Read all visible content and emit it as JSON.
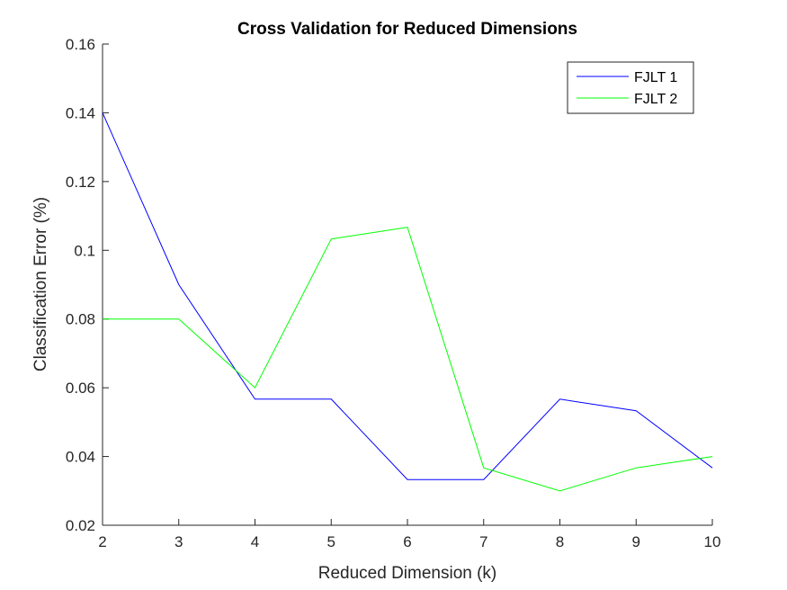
{
  "chart_data": {
    "type": "line",
    "title": "Cross Validation for Reduced Dimensions",
    "xlabel": "Reduced Dimension (k)",
    "ylabel": "Classification Error (%)",
    "xlim": [
      2,
      10
    ],
    "ylim": [
      0.02,
      0.16
    ],
    "xticks": [
      2,
      3,
      4,
      5,
      6,
      7,
      8,
      9,
      10
    ],
    "yticks": [
      0.02,
      0.04,
      0.06,
      0.08,
      0.1,
      0.12,
      0.14,
      0.16
    ],
    "ytick_labels": [
      "0.02",
      "0.04",
      "0.06",
      "0.08",
      "0.1",
      "0.12",
      "0.14",
      "0.16"
    ],
    "grid": false,
    "legend_position": "top-right",
    "x": [
      2,
      3,
      4,
      5,
      6,
      7,
      8,
      9,
      10
    ],
    "series": [
      {
        "name": "FJLT 1",
        "color": "#0000ff",
        "values": [
          0.14,
          0.09,
          0.0567,
          0.0567,
          0.0333,
          0.0333,
          0.0567,
          0.0533,
          0.0367
        ]
      },
      {
        "name": "FJLT 2",
        "color": "#00ff00",
        "values": [
          0.08,
          0.08,
          0.06,
          0.1033,
          0.1067,
          0.0367,
          0.03,
          0.0367,
          0.04
        ]
      }
    ]
  }
}
